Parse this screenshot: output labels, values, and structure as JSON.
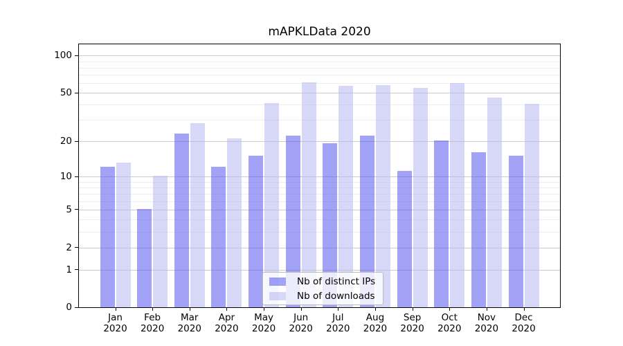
{
  "chart_data": {
    "type": "bar",
    "title": "mAPKLData 2020",
    "categories": [
      "Jan 2020",
      "Feb 2020",
      "Mar 2020",
      "Apr 2020",
      "May 2020",
      "Jun 2020",
      "Jul 2020",
      "Aug 2020",
      "Sep 2020",
      "Oct 2020",
      "Nov 2020",
      "Dec 2020"
    ],
    "series": [
      {
        "name": "Nb of distinct IPs",
        "values": [
          12,
          5,
          23,
          12,
          15,
          22,
          19,
          22,
          11,
          20,
          16,
          15
        ]
      },
      {
        "name": "Nb of downloads",
        "values": [
          13,
          10,
          28,
          21,
          41,
          60,
          56,
          57,
          54,
          59,
          45,
          40
        ]
      }
    ],
    "xlabel": "",
    "ylabel": "",
    "yscale": "symlog (position ~ log10(1+value))",
    "yticks": [
      0,
      1,
      2,
      5,
      10,
      20,
      50,
      100
    ],
    "yticks_minor": [
      3,
      4,
      6,
      7,
      8,
      9,
      30,
      40,
      60,
      70,
      80,
      90
    ],
    "ylim": [
      0,
      126
    ],
    "grid": true,
    "legend_position": "lower center"
  },
  "colors": {
    "ips_bar": "#5555ee",
    "downloads_bar": "#b7b7f3",
    "bar_alpha": 0.55,
    "grid_major": "#cccccc",
    "grid_minor": "#eeeeee",
    "axis": "#000000",
    "legend_border": "#bbbbbb"
  }
}
